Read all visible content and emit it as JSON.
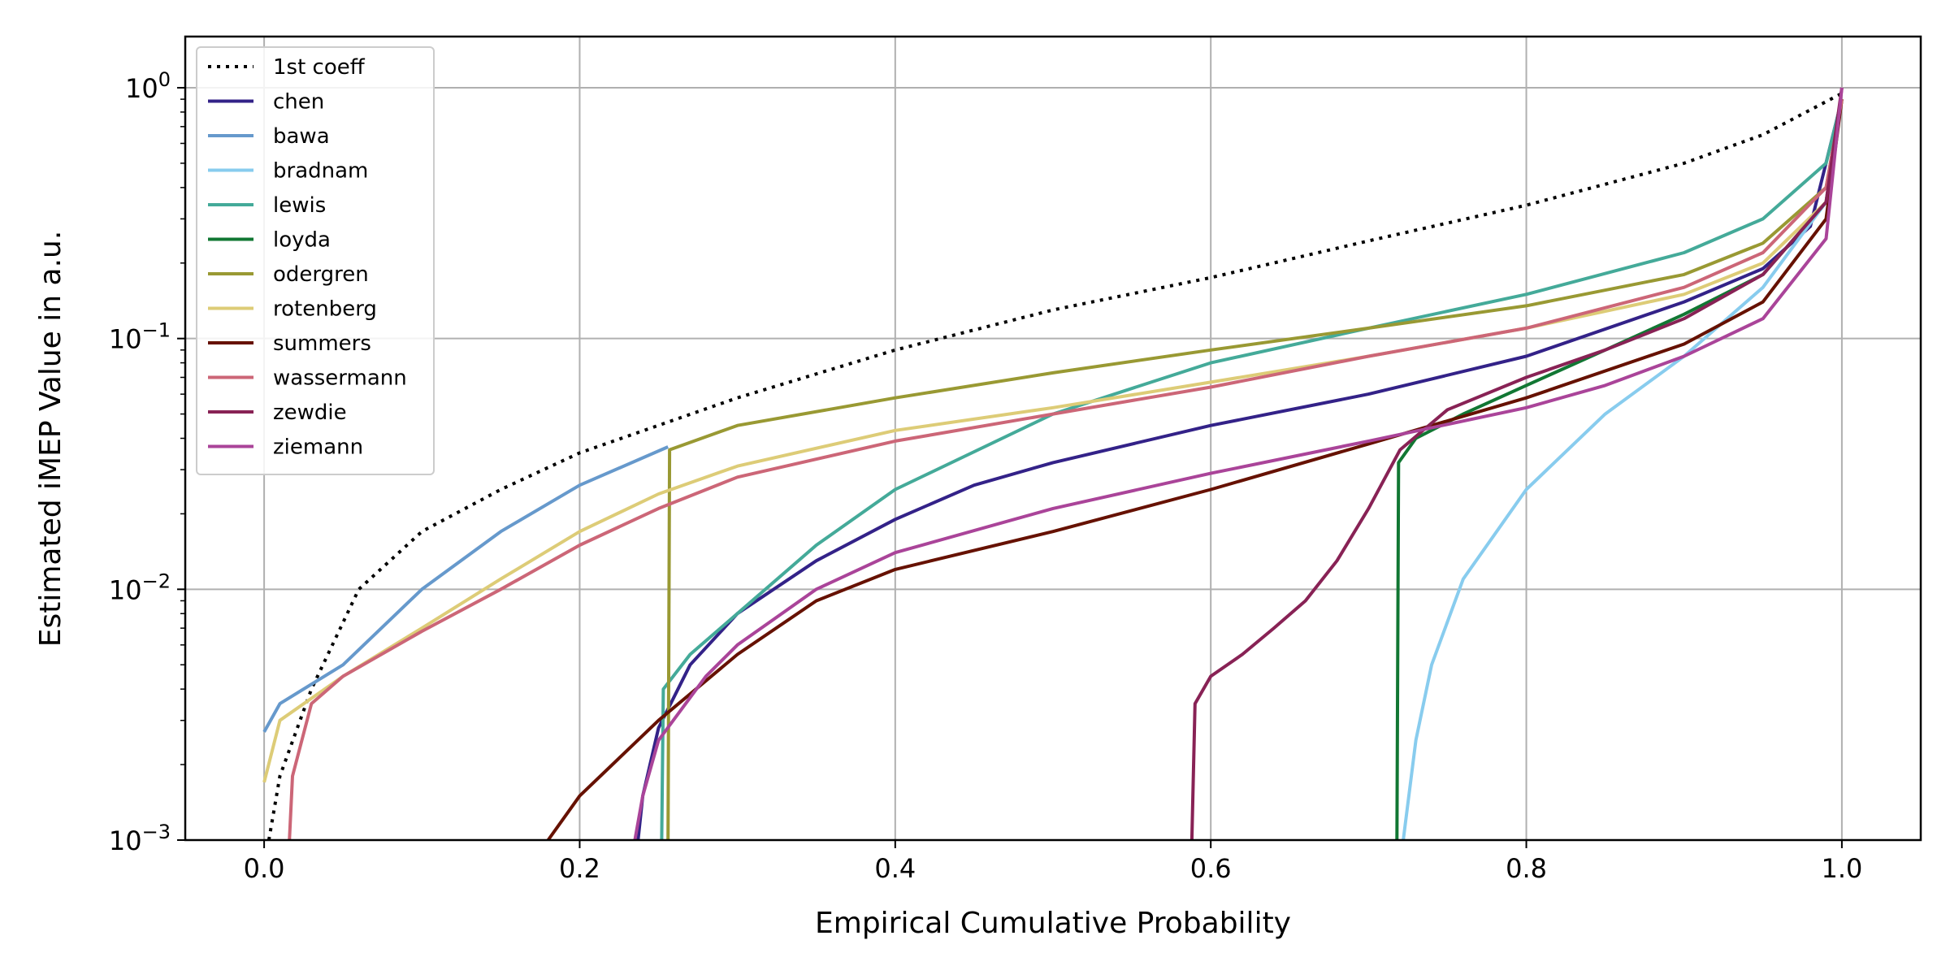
{
  "chart_data": {
    "type": "line",
    "title": "",
    "xlabel": "Empirical Cumulative Probability",
    "ylabel": "Estimated iMEP Value in a.u.",
    "xlim": [
      -0.05,
      1.05
    ],
    "ylim": [
      0.001,
      1.6
    ],
    "yscale": "log",
    "grid": true,
    "legend_position": "upper-left",
    "x_ticks": [
      {
        "value": 0.0,
        "label": "0.0"
      },
      {
        "value": 0.2,
        "label": "0.2"
      },
      {
        "value": 0.4,
        "label": "0.4"
      },
      {
        "value": 0.6,
        "label": "0.6"
      },
      {
        "value": 0.8,
        "label": "0.8"
      },
      {
        "value": 1.0,
        "label": "1.0"
      }
    ],
    "y_ticks": [
      {
        "value": 0.001,
        "base": "10",
        "exp": "−3"
      },
      {
        "value": 0.01,
        "base": "10",
        "exp": "−2"
      },
      {
        "value": 0.1,
        "base": "10",
        "exp": "−1"
      },
      {
        "value": 1.0,
        "base": "10",
        "exp": "0"
      }
    ],
    "series": [
      {
        "name": "1st coeff",
        "color": "#000000",
        "style": "dotted",
        "points": [
          [
            0.003,
            0.001
          ],
          [
            0.01,
            0.0018
          ],
          [
            0.03,
            0.004
          ],
          [
            0.06,
            0.01
          ],
          [
            0.1,
            0.017
          ],
          [
            0.15,
            0.025
          ],
          [
            0.2,
            0.035
          ],
          [
            0.3,
            0.058
          ],
          [
            0.4,
            0.09
          ],
          [
            0.5,
            0.13
          ],
          [
            0.6,
            0.175
          ],
          [
            0.7,
            0.245
          ],
          [
            0.8,
            0.34
          ],
          [
            0.9,
            0.5
          ],
          [
            0.95,
            0.65
          ],
          [
            1.0,
            0.95
          ]
        ]
      },
      {
        "name": "chen",
        "color": "#332288",
        "style": "solid",
        "points": [
          [
            0.237,
            0.001
          ],
          [
            0.24,
            0.0015
          ],
          [
            0.25,
            0.0028
          ],
          [
            0.27,
            0.005
          ],
          [
            0.3,
            0.008
          ],
          [
            0.35,
            0.013
          ],
          [
            0.4,
            0.019
          ],
          [
            0.45,
            0.026
          ],
          [
            0.5,
            0.032
          ],
          [
            0.6,
            0.045
          ],
          [
            0.7,
            0.06
          ],
          [
            0.8,
            0.085
          ],
          [
            0.9,
            0.14
          ],
          [
            0.95,
            0.19
          ],
          [
            0.98,
            0.28
          ],
          [
            1.0,
            0.9
          ]
        ]
      },
      {
        "name": "bawa",
        "color": "#6699CC",
        "style": "solid",
        "points": [
          [
            0.0,
            0.0027
          ],
          [
            0.01,
            0.0035
          ],
          [
            0.05,
            0.005
          ],
          [
            0.1,
            0.01
          ],
          [
            0.15,
            0.017
          ],
          [
            0.2,
            0.026
          ],
          [
            0.256,
            0.037
          ]
        ]
      },
      {
        "name": "bradnam",
        "color": "#88CCEE",
        "style": "solid",
        "points": [
          [
            0.722,
            0.001
          ],
          [
            0.73,
            0.0025
          ],
          [
            0.74,
            0.005
          ],
          [
            0.76,
            0.011
          ],
          [
            0.8,
            0.025
          ],
          [
            0.85,
            0.05
          ],
          [
            0.9,
            0.085
          ],
          [
            0.95,
            0.16
          ],
          [
            0.99,
            0.35
          ],
          [
            1.0,
            0.9
          ]
        ]
      },
      {
        "name": "lewis",
        "color": "#44AA99",
        "style": "solid",
        "points": [
          [
            0.252,
            0.001
          ],
          [
            0.253,
            0.004
          ],
          [
            0.27,
            0.0055
          ],
          [
            0.3,
            0.008
          ],
          [
            0.35,
            0.015
          ],
          [
            0.4,
            0.025
          ],
          [
            0.5,
            0.05
          ],
          [
            0.6,
            0.08
          ],
          [
            0.7,
            0.11
          ],
          [
            0.8,
            0.15
          ],
          [
            0.9,
            0.22
          ],
          [
            0.95,
            0.3
          ],
          [
            0.99,
            0.5
          ],
          [
            1.0,
            0.9
          ]
        ]
      },
      {
        "name": "loyda",
        "color": "#117733",
        "style": "solid",
        "points": [
          [
            0.718,
            0.001
          ],
          [
            0.719,
            0.032
          ],
          [
            0.73,
            0.04
          ],
          [
            0.76,
            0.05
          ],
          [
            0.8,
            0.065
          ],
          [
            0.85,
            0.09
          ],
          [
            0.9,
            0.125
          ],
          [
            0.95,
            0.18
          ],
          [
            0.99,
            0.35
          ],
          [
            1.0,
            0.9
          ]
        ]
      },
      {
        "name": "odergren",
        "color": "#999933",
        "style": "solid",
        "points": [
          [
            0.256,
            0.001
          ],
          [
            0.257,
            0.036
          ],
          [
            0.3,
            0.045
          ],
          [
            0.4,
            0.058
          ],
          [
            0.5,
            0.073
          ],
          [
            0.6,
            0.09
          ],
          [
            0.7,
            0.11
          ],
          [
            0.8,
            0.135
          ],
          [
            0.9,
            0.18
          ],
          [
            0.95,
            0.24
          ],
          [
            0.99,
            0.4
          ],
          [
            1.0,
            0.9
          ]
        ]
      },
      {
        "name": "rotenberg",
        "color": "#DDCC77",
        "style": "solid",
        "points": [
          [
            0.0,
            0.0017
          ],
          [
            0.01,
            0.003
          ],
          [
            0.05,
            0.0045
          ],
          [
            0.1,
            0.007
          ],
          [
            0.15,
            0.011
          ],
          [
            0.2,
            0.017
          ],
          [
            0.25,
            0.024
          ],
          [
            0.3,
            0.031
          ],
          [
            0.4,
            0.043
          ],
          [
            0.5,
            0.053
          ],
          [
            0.6,
            0.067
          ],
          [
            0.7,
            0.085
          ],
          [
            0.8,
            0.11
          ],
          [
            0.9,
            0.15
          ],
          [
            0.95,
            0.2
          ],
          [
            0.99,
            0.35
          ],
          [
            1.0,
            0.9
          ]
        ]
      },
      {
        "name": "summers",
        "color": "#661100",
        "style": "solid",
        "points": [
          [
            0.18,
            0.001
          ],
          [
            0.2,
            0.0015
          ],
          [
            0.25,
            0.003
          ],
          [
            0.3,
            0.0055
          ],
          [
            0.35,
            0.009
          ],
          [
            0.4,
            0.012
          ],
          [
            0.5,
            0.017
          ],
          [
            0.6,
            0.025
          ],
          [
            0.7,
            0.038
          ],
          [
            0.8,
            0.058
          ],
          [
            0.9,
            0.095
          ],
          [
            0.95,
            0.14
          ],
          [
            0.99,
            0.3
          ],
          [
            1.0,
            0.9
          ]
        ]
      },
      {
        "name": "wassermann",
        "color": "#CC6677",
        "style": "solid",
        "points": [
          [
            0.016,
            0.001
          ],
          [
            0.018,
            0.0018
          ],
          [
            0.03,
            0.0035
          ],
          [
            0.05,
            0.0045
          ],
          [
            0.1,
            0.0068
          ],
          [
            0.15,
            0.01
          ],
          [
            0.2,
            0.015
          ],
          [
            0.25,
            0.021
          ],
          [
            0.3,
            0.028
          ],
          [
            0.4,
            0.039
          ],
          [
            0.5,
            0.05
          ],
          [
            0.6,
            0.064
          ],
          [
            0.7,
            0.085
          ],
          [
            0.8,
            0.11
          ],
          [
            0.9,
            0.16
          ],
          [
            0.95,
            0.22
          ],
          [
            0.99,
            0.4
          ],
          [
            1.0,
            0.9
          ]
        ]
      },
      {
        "name": "zewdie",
        "color": "#882255",
        "style": "solid",
        "points": [
          [
            0.588,
            0.001
          ],
          [
            0.59,
            0.0035
          ],
          [
            0.6,
            0.0045
          ],
          [
            0.62,
            0.0055
          ],
          [
            0.64,
            0.007
          ],
          [
            0.66,
            0.009
          ],
          [
            0.68,
            0.013
          ],
          [
            0.7,
            0.021
          ],
          [
            0.72,
            0.036
          ],
          [
            0.75,
            0.052
          ],
          [
            0.8,
            0.07
          ],
          [
            0.85,
            0.09
          ],
          [
            0.9,
            0.12
          ],
          [
            0.95,
            0.18
          ],
          [
            0.99,
            0.35
          ],
          [
            1.0,
            1.0
          ]
        ]
      },
      {
        "name": "ziemann",
        "color": "#AA4499",
        "style": "solid",
        "points": [
          [
            0.235,
            0.001
          ],
          [
            0.24,
            0.0015
          ],
          [
            0.25,
            0.0025
          ],
          [
            0.28,
            0.0045
          ],
          [
            0.3,
            0.006
          ],
          [
            0.35,
            0.01
          ],
          [
            0.4,
            0.014
          ],
          [
            0.5,
            0.021
          ],
          [
            0.6,
            0.029
          ],
          [
            0.7,
            0.039
          ],
          [
            0.8,
            0.053
          ],
          [
            0.85,
            0.065
          ],
          [
            0.9,
            0.085
          ],
          [
            0.95,
            0.12
          ],
          [
            0.99,
            0.25
          ],
          [
            1.0,
            1.0
          ]
        ]
      }
    ]
  }
}
